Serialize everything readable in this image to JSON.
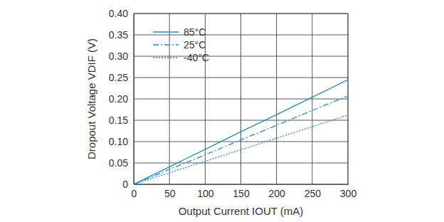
{
  "chart_data": {
    "type": "line",
    "x_label": "Output Current IOUT (mA)",
    "y_label": "Dropout Voltage VDIF (V)",
    "x": [
      0,
      50,
      100,
      150,
      200,
      250,
      300
    ],
    "series": [
      {
        "name": "85°C",
        "color": "#1b8ccf",
        "line_style": "solid",
        "values": [
          0,
          0.041,
          0.082,
          0.123,
          0.163,
          0.204,
          0.245
        ]
      },
      {
        "name": "25°C",
        "color": "#1b8ccf",
        "line_style": "dashdot",
        "values": [
          0,
          0.035,
          0.069,
          0.104,
          0.138,
          0.173,
          0.207
        ]
      },
      {
        "name": "-40°C",
        "color": "#1b8ccf",
        "line_style": "dotted",
        "values": [
          0,
          0.027,
          0.054,
          0.081,
          0.108,
          0.135,
          0.162
        ]
      }
    ],
    "xlim": [
      0,
      300
    ],
    "xticks": [
      0,
      50,
      100,
      150,
      200,
      250,
      300
    ],
    "ylim": [
      0,
      0.4
    ],
    "yticks": [
      0,
      0.05,
      {
        "value": 0.1,
        "label": "0.10"
      },
      0.15,
      {
        "value": 0.2,
        "label": "0.20"
      },
      0.25,
      {
        "value": 0.3,
        "label": "0.30"
      },
      0.35,
      {
        "value": 0.4,
        "label": "0.40"
      }
    ],
    "grid": true,
    "legend": "upper left"
  }
}
